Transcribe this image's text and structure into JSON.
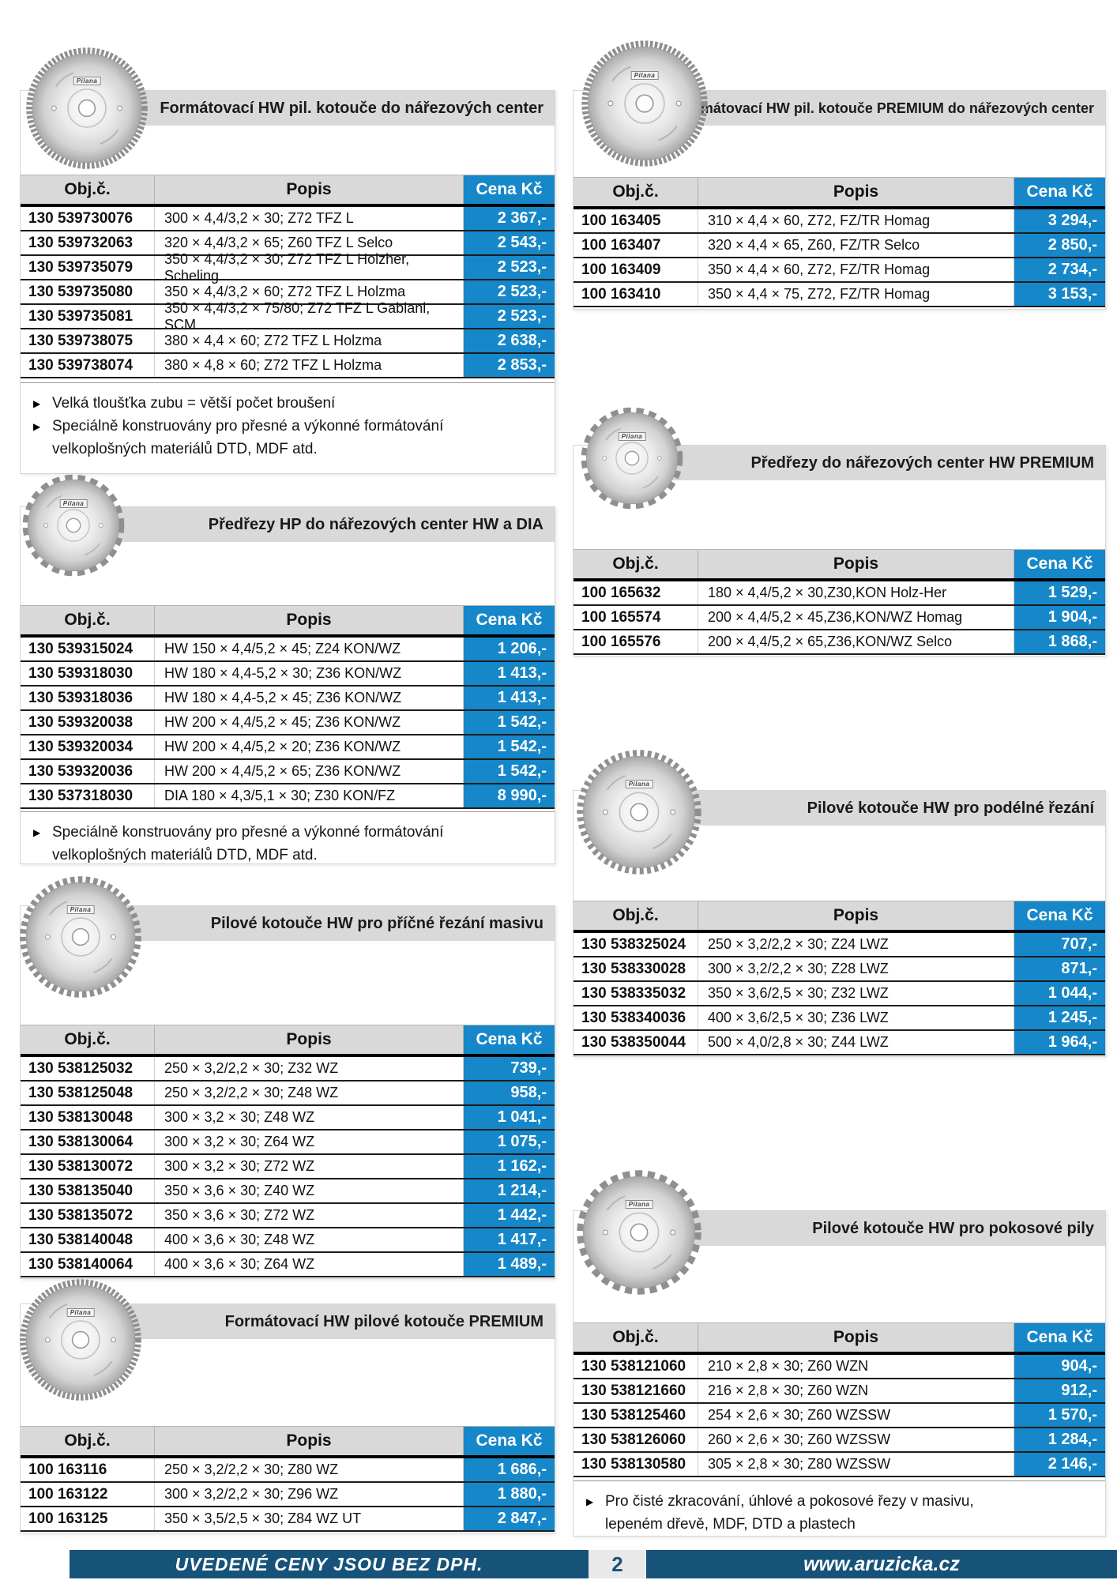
{
  "page": {
    "blade_brand": "Pilana"
  },
  "labels": {
    "obj": "Obj.č.",
    "popis": "Popis",
    "cena": "Cena Kč"
  },
  "icons": {
    "bullet": "▶",
    "blade": "saw-blade-photo"
  },
  "colors": {
    "accent_blue": "#1687c9",
    "band_gray": "#d9d9d9",
    "footer_blue": "#175379",
    "row_border": "#1c1c1c"
  },
  "footer": {
    "left_text": "UVEDENÉ CENY JSOU BEZ DPH.",
    "page_number": "2",
    "right_text": "www.aruzicka.cz"
  },
  "sections": [
    {
      "id": "formatovaci-hw-narezova-centra",
      "title": "Formátovací HW pil. kotouče do nářezových center",
      "icon": "saw-blade-photo",
      "rows": [
        {
          "obj": "130 539730076",
          "popis": "300 × 4,4/3,2 × 30; Z72 TFZ L",
          "cena": "2 367,-"
        },
        {
          "obj": "130 539732063",
          "popis": "320 × 4,4/3,2 × 65; Z60 TFZ L Selco",
          "cena": "2 543,-"
        },
        {
          "obj": "130 539735079",
          "popis": "350 × 4,4/3,2 × 30; Z72 TFZ L Holzher, Scheling",
          "cena": "2 523,-"
        },
        {
          "obj": "130 539735080",
          "popis": "350 × 4,4/3,2 × 60; Z72 TFZ L Holzma",
          "cena": "2 523,-"
        },
        {
          "obj": "130 539735081",
          "popis": "350 × 4,4/3,2 × 75/80; Z72 TFZ L Gabiani, SCM",
          "cena": "2 523,-"
        },
        {
          "obj": "130 539738075",
          "popis": "380 × 4,4 × 60; Z72 TFZ L Holzma",
          "cena": "2 638,-"
        },
        {
          "obj": "130 539738074",
          "popis": "380 × 4,8 × 60; Z72 TFZ L Holzma",
          "cena": "2 853,-"
        }
      ],
      "notes": [
        "Velká tloušťka zubu = větší počet broušení",
        "Speciálně konstruovány pro přesné a výkonné formátování velkoplošných materiálů DTD, MDF atd."
      ]
    },
    {
      "id": "predrezy-hp-hw-dia",
      "title": "Předřezy HP do nářezových center HW a DIA",
      "icon": "saw-blade-photo",
      "rows": [
        {
          "obj": "130 539315024",
          "popis": "HW 150 × 4,4/5,2 × 45; Z24 KON/WZ",
          "cena": "1 206,-"
        },
        {
          "obj": "130 539318030",
          "popis": "HW 180 × 4,4-5,2 × 30; Z36 KON/WZ",
          "cena": "1 413,-"
        },
        {
          "obj": "130 539318036",
          "popis": "HW 180 × 4,4-5,2 × 45; Z36 KON/WZ",
          "cena": "1 413,-"
        },
        {
          "obj": "130 539320038",
          "popis": "HW 200 × 4,4/5,2 × 45; Z36 KON/WZ",
          "cena": "1 542,-"
        },
        {
          "obj": "130 539320034",
          "popis": "HW 200 × 4,4/5,2 × 20; Z36 KON/WZ",
          "cena": "1 542,-"
        },
        {
          "obj": "130 539320036",
          "popis": "HW 200 × 4,4/5,2 × 65; Z36 KON/WZ",
          "cena": "1 542,-"
        },
        {
          "obj": "130 537318030",
          "popis": "DIA 180 × 4,3/5,1 × 30; Z30 KON/FZ",
          "cena": "8 990,-"
        }
      ],
      "notes": [
        "Speciálně konstruovány pro přesné a výkonné formátování velkoplošných materiálů DTD, MDF atd."
      ]
    },
    {
      "id": "pilove-hw-pricne-rezani-masivu",
      "title": "Pilové kotouče HW pro příčné řezání masivu",
      "icon": "saw-blade-photo",
      "rows": [
        {
          "obj": "130 538125032",
          "popis": "250 × 3,2/2,2 × 30; Z32 WZ",
          "cena": "739,-"
        },
        {
          "obj": "130 538125048",
          "popis": "250 × 3,2/2,2 × 30; Z48 WZ",
          "cena": "958,-"
        },
        {
          "obj": "130 538130048",
          "popis": "300 × 3,2 × 30; Z48 WZ",
          "cena": "1 041,-"
        },
        {
          "obj": "130 538130064",
          "popis": "300 × 3,2 × 30; Z64 WZ",
          "cena": "1 075,-"
        },
        {
          "obj": "130 538130072",
          "popis": "300 × 3,2 × 30; Z72 WZ",
          "cena": "1 162,-"
        },
        {
          "obj": "130 538135040",
          "popis": "350 × 3,6 × 30; Z40 WZ",
          "cena": "1 214,-"
        },
        {
          "obj": "130 538135072",
          "popis": "350 × 3,6 × 30; Z72 WZ",
          "cena": "1 442,-"
        },
        {
          "obj": "130 538140048",
          "popis": "400 × 3,6 × 30; Z48 WZ",
          "cena": "1 417,-"
        },
        {
          "obj": "130 538140064",
          "popis": "400 × 3,6 × 30; Z64 WZ",
          "cena": "1 489,-"
        }
      ],
      "notes": []
    },
    {
      "id": "formatovaci-hw-premium",
      "title": "Formátovací HW pilové kotouče PREMIUM",
      "icon": "saw-blade-photo",
      "rows": [
        {
          "obj": "100 163116",
          "popis": "250 × 3,2/2,2 × 30; Z80 WZ",
          "cena": "1 686,-"
        },
        {
          "obj": "100 163122",
          "popis": "300 × 3,2/2,2 × 30; Z96 WZ",
          "cena": "1 880,-"
        },
        {
          "obj": "100 163125",
          "popis": "350 × 3,5/2,5 × 30; Z84 WZ UT",
          "cena": "2 847,-"
        }
      ],
      "notes": []
    },
    {
      "id": "formatovaci-hw-premium-narezova-centra",
      "title": "Formátovací HW pil. kotouče PREMIUM do nářezových center",
      "icon": "saw-blade-photo",
      "rows": [
        {
          "obj": "100 163405",
          "popis": "310 × 4,4 × 60, Z72, FZ/TR Homag",
          "cena": "3 294,-"
        },
        {
          "obj": "100 163407",
          "popis": "320 × 4,4 × 65, Z60, FZ/TR Selco",
          "cena": "2 850,-"
        },
        {
          "obj": "100 163409",
          "popis": "350 × 4,4 × 60, Z72, FZ/TR Homag",
          "cena": "2 734,-"
        },
        {
          "obj": "100 163410",
          "popis": "350 × 4,4 × 75, Z72, FZ/TR Homag",
          "cena": "3 153,-"
        }
      ],
      "notes": []
    },
    {
      "id": "predrezy-hw-premium",
      "title": "Předřezy do nářezových center HW PREMIUM",
      "icon": "saw-blade-photo",
      "rows": [
        {
          "obj": "100 165632",
          "popis": "180 × 4,4/5,2 × 30,Z30,KON Holz-Her",
          "cena": "1 529,-"
        },
        {
          "obj": "100 165574",
          "popis": "200 × 4,4/5,2 × 45,Z36,KON/WZ Homag",
          "cena": "1 904,-"
        },
        {
          "obj": "100 165576",
          "popis": "200 × 4,4/5,2 × 65,Z36,KON/WZ Selco",
          "cena": "1 868,-"
        }
      ],
      "notes": []
    },
    {
      "id": "pilove-hw-podelne-rezani",
      "title": "Pilové kotouče HW pro podélné řezání",
      "icon": "saw-blade-photo",
      "rows": [
        {
          "obj": "130 538325024",
          "popis": "250 × 3,2/2,2 × 30; Z24 LWZ",
          "cena": "707,-"
        },
        {
          "obj": "130 538330028",
          "popis": "300 × 3,2/2,2 × 30; Z28 LWZ",
          "cena": "871,-"
        },
        {
          "obj": "130 538335032",
          "popis": "350 × 3,6/2,5 × 30; Z32 LWZ",
          "cena": "1 044,-"
        },
        {
          "obj": "130 538340036",
          "popis": "400 × 3,6/2,5 × 30; Z36 LWZ",
          "cena": "1 245,-"
        },
        {
          "obj": "130 538350044",
          "popis": "500 × 4,0/2,8 × 30; Z44 LWZ",
          "cena": "1 964,-"
        }
      ],
      "notes": []
    },
    {
      "id": "pilove-hw-pokosove-pily",
      "title": "Pilové kotouče HW pro pokosové pily",
      "icon": "saw-blade-photo",
      "rows": [
        {
          "obj": "130 538121060",
          "popis": "210 × 2,8 × 30; Z60 WZN",
          "cena": "904,-"
        },
        {
          "obj": "130 538121660",
          "popis": "216 × 2,8 × 30; Z60 WZN",
          "cena": "912,-"
        },
        {
          "obj": "130 538125460",
          "popis": "254 × 2,6 × 30; Z60 WZSSW",
          "cena": "1 570,-"
        },
        {
          "obj": "130 538126060",
          "popis": "260 × 2,6 × 30; Z60 WZSSW",
          "cena": "1 284,-"
        },
        {
          "obj": "130 538130580",
          "popis": "305 × 2,8 × 30; Z80 WZSSW",
          "cena": "2 146,-"
        }
      ],
      "notes": [
        "Pro čisté zkracování, úhlové a pokosové řezy v masivu, lepeném dřevě, MDF, DTD a plastech"
      ]
    }
  ]
}
